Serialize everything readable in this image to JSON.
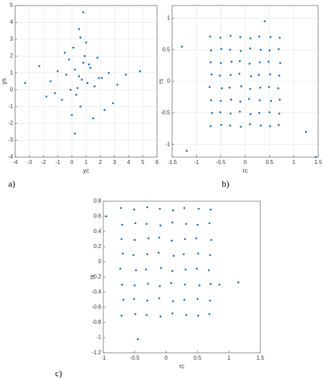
{
  "chart_data": [
    {
      "type": "scatter",
      "panel_label": "a)",
      "xlabel": "yc",
      "ylabel": "ys",
      "color": "#1f6fb4",
      "grid": true,
      "xlim": [
        -4,
        6
      ],
      "xticks": [
        -4,
        -3,
        -2,
        -1,
        0,
        1,
        2,
        3,
        4,
        5,
        6
      ],
      "ylim": [
        -4,
        5
      ],
      "yticks": [
        -4,
        -3,
        -2,
        -1,
        0,
        1,
        2,
        3,
        4,
        5
      ],
      "x": [
        0.5,
        0.2,
        1.1,
        -0.4,
        0.8,
        1.6,
        -1.0,
        0.3,
        0.9,
        2.1,
        -0.2,
        0.6,
        1.3,
        -1.5,
        0.1,
        2.6,
        0.4,
        -0.7,
        1.8,
        0.7,
        3.2,
        -2.3,
        0.0,
        1.0,
        -1.2,
        2.9,
        0.5,
        -0.1,
        1.5,
        4.8,
        -3.3,
        0.8,
        1.2,
        -0.5,
        2.3,
        0.2,
        3.8,
        -1.8,
        0.6,
        1.9
      ],
      "y": [
        0.8,
        1.2,
        0.4,
        0.9,
        1.6,
        0.2,
        1.1,
        -0.3,
        2.0,
        0.7,
        1.8,
        -1.0,
        1.3,
        0.5,
        2.5,
        1.0,
        0.1,
        -0.6,
        1.9,
        0.6,
        0.3,
        1.4,
        -1.5,
        2.8,
        -0.2,
        -0.8,
        3.6,
        0.0,
        -1.7,
        1.1,
        0.4,
        4.6,
        1.5,
        2.2,
        -1.2,
        -2.6,
        0.9,
        -0.4,
        3.1,
        0.7
      ]
    },
    {
      "type": "scatter",
      "panel_label": "b)",
      "xlabel": "rc",
      "ylabel": "rs",
      "color": "#1f6fb4",
      "grid": true,
      "xlim": [
        -1.5,
        1.5
      ],
      "xticks": [
        -1.5,
        -1,
        -0.5,
        0,
        0.5,
        1,
        1.5
      ],
      "ylim": [
        -1.2,
        1.2
      ],
      "yticks": [
        -1,
        -0.5,
        0,
        0.5,
        1
      ],
      "x": [
        -0.72,
        -0.51,
        -0.3,
        -0.1,
        0.11,
        0.29,
        0.52,
        0.71,
        -0.7,
        -0.49,
        -0.31,
        -0.09,
        0.1,
        0.32,
        0.5,
        0.69,
        -0.71,
        -0.5,
        -0.28,
        -0.11,
        0.09,
        0.3,
        0.48,
        0.72,
        -0.69,
        -0.52,
        -0.3,
        -0.12,
        0.12,
        0.28,
        0.51,
        0.7,
        -0.73,
        -0.48,
        -0.32,
        -0.08,
        0.1,
        0.31,
        0.49,
        0.68,
        -0.7,
        -0.5,
        -0.29,
        -0.1,
        0.08,
        0.3,
        0.53,
        0.71,
        -0.68,
        -0.51,
        -0.3,
        -0.11,
        0.11,
        0.29,
        0.5,
        0.7,
        -0.71,
        -0.49,
        -0.31,
        -0.09,
        0.1,
        0.32,
        0.51,
        0.69,
        -1.2,
        1.45,
        -1.3,
        1.25,
        0.4
      ],
      "y": [
        0.71,
        0.69,
        0.72,
        0.7,
        0.68,
        0.71,
        0.7,
        0.69,
        0.49,
        0.51,
        0.5,
        0.48,
        0.52,
        0.5,
        0.49,
        0.51,
        0.3,
        0.29,
        0.31,
        0.32,
        0.28,
        0.3,
        0.31,
        0.29,
        0.11,
        0.09,
        0.1,
        0.12,
        0.08,
        0.1,
        0.11,
        0.09,
        -0.09,
        -0.11,
        -0.1,
        -0.08,
        -0.12,
        -0.1,
        -0.09,
        -0.11,
        -0.3,
        -0.31,
        -0.29,
        -0.32,
        -0.28,
        -0.3,
        -0.31,
        -0.29,
        -0.5,
        -0.49,
        -0.51,
        -0.48,
        -0.52,
        -0.5,
        -0.49,
        -0.51,
        -0.71,
        -0.69,
        -0.7,
        -0.72,
        -0.68,
        -0.7,
        -0.71,
        -0.69,
        -1.1,
        -1.2,
        0.55,
        -0.8,
        0.95
      ]
    },
    {
      "type": "scatter",
      "panel_label": "c)",
      "xlabel": "rc",
      "ylabel": "rs",
      "color": "#1f6fb4",
      "grid": false,
      "xlim": [
        -1,
        1.5
      ],
      "xticks": [
        -1,
        -0.5,
        0,
        0.5,
        1,
        1.5
      ],
      "ylim": [
        -1.2,
        0.8
      ],
      "yticks": [
        -1.2,
        -1,
        -0.8,
        -0.6,
        -0.4,
        -0.2,
        0,
        0.2,
        0.4,
        0.6,
        0.8
      ],
      "x": [
        -0.72,
        -0.51,
        -0.3,
        -0.1,
        0.11,
        0.29,
        0.52,
        0.71,
        -0.7,
        -0.49,
        -0.31,
        -0.09,
        0.1,
        0.32,
        0.5,
        0.69,
        -0.71,
        -0.5,
        -0.28,
        -0.11,
        0.09,
        0.3,
        0.48,
        0.72,
        -0.69,
        -0.52,
        -0.3,
        -0.12,
        0.12,
        0.28,
        0.51,
        0.7,
        -0.73,
        -0.48,
        -0.32,
        -0.08,
        0.1,
        0.31,
        0.49,
        0.68,
        -0.7,
        -0.5,
        -0.29,
        -0.1,
        0.08,
        0.3,
        0.53,
        0.71,
        -0.68,
        -0.51,
        -0.3,
        -0.11,
        0.11,
        0.29,
        0.5,
        0.7,
        -0.71,
        -0.49,
        -0.31,
        -0.09,
        0.1,
        0.32,
        0.51,
        0.69,
        -0.45,
        1.15,
        -0.95,
        0.85
      ],
      "y": [
        0.71,
        0.69,
        0.72,
        0.7,
        0.68,
        0.71,
        0.7,
        0.69,
        0.49,
        0.51,
        0.5,
        0.48,
        0.52,
        0.5,
        0.49,
        0.51,
        0.3,
        0.29,
        0.31,
        0.32,
        0.28,
        0.3,
        0.31,
        0.29,
        0.11,
        0.09,
        0.1,
        0.12,
        0.08,
        0.1,
        0.11,
        0.09,
        -0.09,
        -0.11,
        -0.1,
        -0.08,
        -0.12,
        -0.1,
        -0.09,
        -0.11,
        -0.3,
        -0.31,
        -0.29,
        -0.32,
        -0.28,
        -0.3,
        -0.31,
        -0.29,
        -0.5,
        -0.49,
        -0.51,
        -0.48,
        -0.52,
        -0.5,
        -0.49,
        -0.51,
        -0.71,
        -0.69,
        -0.7,
        -0.72,
        -0.68,
        -0.7,
        -0.71,
        -0.69,
        -1.02,
        -0.27,
        0.6,
        -0.3
      ]
    }
  ]
}
